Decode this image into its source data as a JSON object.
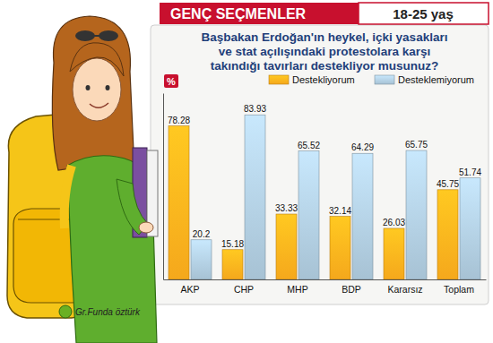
{
  "chart_data": {
    "type": "bar",
    "header": "GENÇ SEÇMENLER",
    "subtitle": "18-25 yaş",
    "title": "Başbakan Erdoğan'ın heykel, içki yasakları\nve stat açılışındaki protestolara karşı\ntakındığı tavırları destekliyor musunuz?",
    "ylabel": "%",
    "credit": "Gr.Funda öztürk",
    "categories": [
      "AKP",
      "CHP",
      "MHP",
      "BDP",
      "Kararsız",
      "Toplam"
    ],
    "series": [
      {
        "name": "Destekliyorum",
        "color": "#f5a81c",
        "values": [
          78.28,
          15.18,
          33.33,
          32.14,
          26.03,
          45.75
        ]
      },
      {
        "name": "Desteklemiyorum",
        "color": "#a7c2d4",
        "values": [
          20.2,
          83.93,
          65.52,
          64.29,
          65.75,
          51.74
        ]
      }
    ],
    "ylim": [
      0,
      95
    ],
    "grid": false,
    "legend": "top",
    "data_labels": true,
    "tick_labels": "x"
  }
}
